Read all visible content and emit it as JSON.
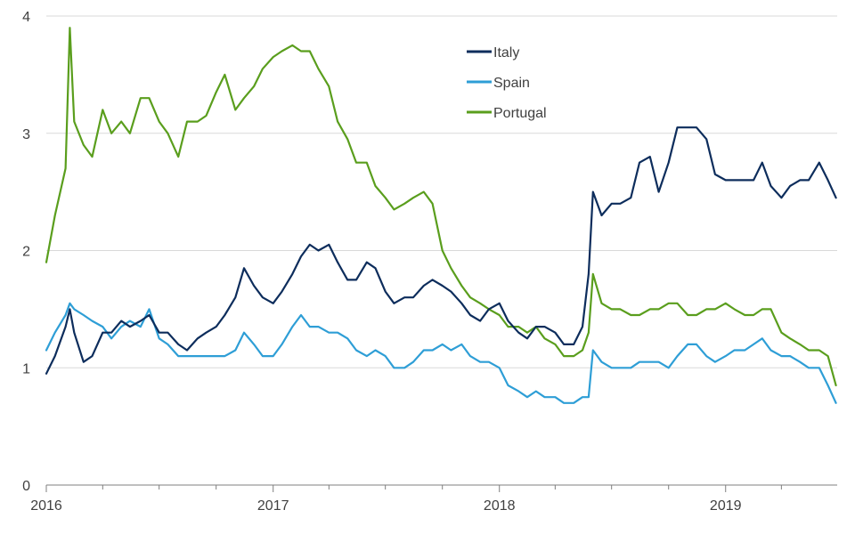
{
  "chart_data": {
    "type": "line",
    "title": "",
    "xlabel": "",
    "ylabel": "",
    "ylim": [
      0,
      4
    ],
    "xlim": [
      "2016-01-01",
      "2019-06-30"
    ],
    "yticks": [
      0,
      1,
      2,
      3,
      4
    ],
    "xticks": [
      "2016",
      "2017",
      "2018",
      "2019"
    ],
    "grid": "horizontal",
    "legend_position": "top-center",
    "x": [
      "2016-01-01",
      "2016-01-15",
      "2016-02-01",
      "2016-02-08",
      "2016-02-15",
      "2016-03-01",
      "2016-03-15",
      "2016-04-01",
      "2016-04-15",
      "2016-05-01",
      "2016-05-15",
      "2016-06-01",
      "2016-06-15",
      "2016-07-01",
      "2016-07-15",
      "2016-08-01",
      "2016-08-15",
      "2016-09-01",
      "2016-09-15",
      "2016-10-01",
      "2016-10-15",
      "2016-11-01",
      "2016-11-15",
      "2016-12-01",
      "2016-12-15",
      "2017-01-01",
      "2017-01-15",
      "2017-02-01",
      "2017-02-15",
      "2017-03-01",
      "2017-03-15",
      "2017-04-01",
      "2017-04-15",
      "2017-05-01",
      "2017-05-15",
      "2017-06-01",
      "2017-06-15",
      "2017-07-01",
      "2017-07-15",
      "2017-08-01",
      "2017-08-15",
      "2017-09-01",
      "2017-09-15",
      "2017-10-01",
      "2017-10-15",
      "2017-11-01",
      "2017-11-15",
      "2017-12-01",
      "2017-12-15",
      "2018-01-01",
      "2018-01-15",
      "2018-02-01",
      "2018-02-15",
      "2018-03-01",
      "2018-03-15",
      "2018-04-01",
      "2018-04-15",
      "2018-05-01",
      "2018-05-15",
      "2018-05-25",
      "2018-06-01",
      "2018-06-15",
      "2018-07-01",
      "2018-07-15",
      "2018-08-01",
      "2018-08-15",
      "2018-09-01",
      "2018-09-15",
      "2018-10-01",
      "2018-10-15",
      "2018-11-01",
      "2018-11-15",
      "2018-12-01",
      "2018-12-15",
      "2019-01-01",
      "2019-01-15",
      "2019-02-01",
      "2019-02-15",
      "2019-03-01",
      "2019-03-15",
      "2019-04-01",
      "2019-04-15",
      "2019-05-01",
      "2019-05-15",
      "2019-06-01",
      "2019-06-15",
      "2019-06-28"
    ],
    "series": [
      {
        "name": "Italy",
        "color": "#0d2d5c",
        "values": [
          0.95,
          1.1,
          1.35,
          1.5,
          1.3,
          1.05,
          1.1,
          1.3,
          1.3,
          1.4,
          1.35,
          1.4,
          1.45,
          1.3,
          1.3,
          1.2,
          1.15,
          1.25,
          1.3,
          1.35,
          1.45,
          1.6,
          1.85,
          1.7,
          1.6,
          1.55,
          1.65,
          1.8,
          1.95,
          2.05,
          2.0,
          2.05,
          1.9,
          1.75,
          1.75,
          1.9,
          1.85,
          1.65,
          1.55,
          1.6,
          1.6,
          1.7,
          1.75,
          1.7,
          1.65,
          1.55,
          1.45,
          1.4,
          1.5,
          1.55,
          1.4,
          1.3,
          1.25,
          1.35,
          1.35,
          1.3,
          1.2,
          1.2,
          1.35,
          1.8,
          2.5,
          2.3,
          2.4,
          2.4,
          2.45,
          2.75,
          2.8,
          2.5,
          2.75,
          3.05,
          3.05,
          3.05,
          2.95,
          2.65,
          2.6,
          2.6,
          2.6,
          2.6,
          2.75,
          2.55,
          2.45,
          2.55,
          2.6,
          2.6,
          2.75,
          2.6,
          2.45
        ]
      },
      {
        "name": "Spain",
        "color": "#2e9ed6",
        "values": [
          1.15,
          1.3,
          1.45,
          1.55,
          1.5,
          1.45,
          1.4,
          1.35,
          1.25,
          1.35,
          1.4,
          1.35,
          1.5,
          1.25,
          1.2,
          1.1,
          1.1,
          1.1,
          1.1,
          1.1,
          1.1,
          1.15,
          1.3,
          1.2,
          1.1,
          1.1,
          1.2,
          1.35,
          1.45,
          1.35,
          1.35,
          1.3,
          1.3,
          1.25,
          1.15,
          1.1,
          1.15,
          1.1,
          1.0,
          1.0,
          1.05,
          1.15,
          1.15,
          1.2,
          1.15,
          1.2,
          1.1,
          1.05,
          1.05,
          1.0,
          0.85,
          0.8,
          0.75,
          0.8,
          0.75,
          0.75,
          0.7,
          0.7,
          0.75,
          0.75,
          1.15,
          1.05,
          1.0,
          1.0,
          1.0,
          1.05,
          1.05,
          1.05,
          1.0,
          1.1,
          1.2,
          1.2,
          1.1,
          1.05,
          1.1,
          1.15,
          1.15,
          1.2,
          1.25,
          1.15,
          1.1,
          1.1,
          1.05,
          1.0,
          1.0,
          0.85,
          0.7
        ]
      },
      {
        "name": "Portugal",
        "color": "#5a9e1d",
        "values": [
          1.9,
          2.3,
          2.7,
          3.9,
          3.1,
          2.9,
          2.8,
          3.2,
          3.0,
          3.1,
          3.0,
          3.3,
          3.3,
          3.1,
          3.0,
          2.8,
          3.1,
          3.1,
          3.15,
          3.35,
          3.5,
          3.2,
          3.3,
          3.4,
          3.55,
          3.65,
          3.7,
          3.75,
          3.7,
          3.7,
          3.55,
          3.4,
          3.1,
          2.95,
          2.75,
          2.75,
          2.55,
          2.45,
          2.35,
          2.4,
          2.45,
          2.5,
          2.4,
          2.0,
          1.85,
          1.7,
          1.6,
          1.55,
          1.5,
          1.45,
          1.35,
          1.35,
          1.3,
          1.35,
          1.25,
          1.2,
          1.1,
          1.1,
          1.15,
          1.3,
          1.8,
          1.55,
          1.5,
          1.5,
          1.45,
          1.45,
          1.5,
          1.5,
          1.55,
          1.55,
          1.45,
          1.45,
          1.5,
          1.5,
          1.55,
          1.5,
          1.45,
          1.45,
          1.5,
          1.5,
          1.3,
          1.25,
          1.2,
          1.15,
          1.15,
          1.1,
          0.85
        ]
      }
    ]
  }
}
